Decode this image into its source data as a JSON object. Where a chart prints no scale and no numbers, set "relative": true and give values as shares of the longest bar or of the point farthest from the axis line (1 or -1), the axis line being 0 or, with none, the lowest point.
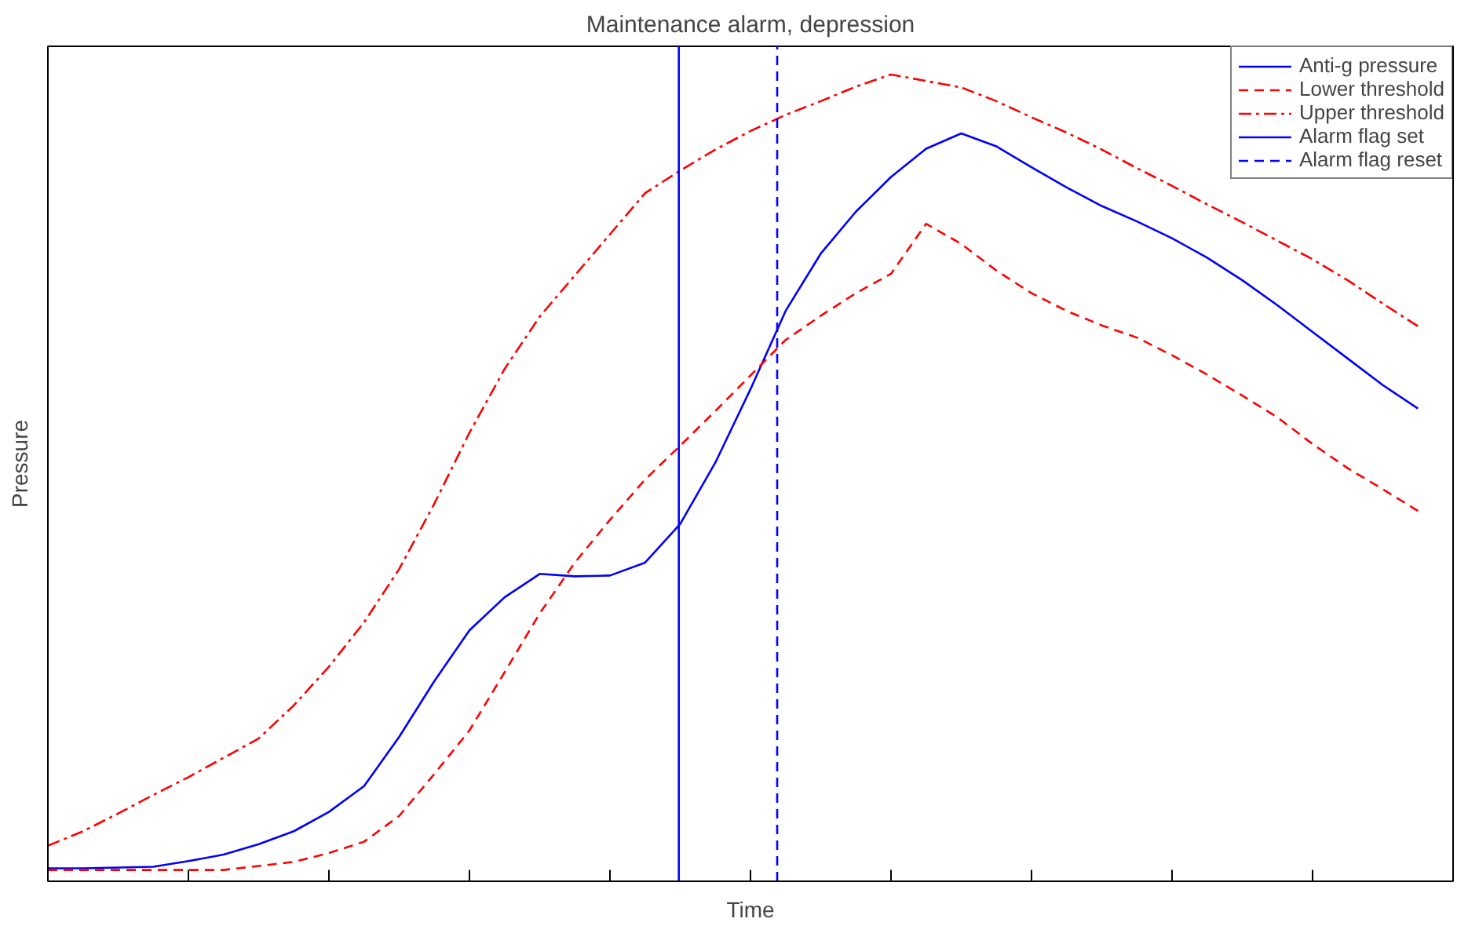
{
  "chart_data": {
    "type": "line",
    "title": "Maintenance alarm, depression",
    "xlabel": "Time",
    "ylabel": "Pressure",
    "relative": true,
    "categories": [
      null,
      null,
      null,
      null,
      null,
      null,
      null,
      null,
      null,
      null,
      null,
      null,
      null,
      null,
      null,
      null,
      null,
      null,
      null,
      null,
      null,
      null,
      null,
      null,
      null,
      null,
      null,
      null,
      null,
      null,
      null,
      null,
      null,
      null,
      null,
      null,
      null,
      null,
      null,
      null
    ],
    "legend": "top right",
    "series": [
      {
        "name": "Anti-g pressure",
        "color": "#0000ff",
        "line_style": "solid",
        "values": [
          0.016,
          0.016,
          0.017,
          0.018,
          0.025,
          0.033,
          0.046,
          0.062,
          0.086,
          0.118,
          0.179,
          0.248,
          0.311,
          0.352,
          0.381,
          0.378,
          0.379,
          0.395,
          0.443,
          0.519,
          0.61,
          0.707,
          0.778,
          0.83,
          0.873,
          0.908,
          0.927,
          0.911,
          0.885,
          0.86,
          0.837,
          0.818,
          0.797,
          0.773,
          0.745,
          0.714,
          0.681,
          0.648,
          0.615,
          0.586
        ]
      },
      {
        "name": "Lower threshold",
        "color": "#ff0000",
        "line_style": "dashed",
        "values": [
          0.014,
          0.014,
          0.014,
          0.014,
          0.014,
          0.014,
          0.019,
          0.024,
          0.035,
          0.049,
          0.081,
          0.133,
          0.187,
          0.259,
          0.332,
          0.395,
          0.448,
          0.498,
          0.54,
          0.583,
          0.627,
          0.671,
          0.701,
          0.729,
          0.753,
          0.815,
          0.79,
          0.757,
          0.729,
          0.707,
          0.689,
          0.674,
          0.652,
          0.628,
          0.602,
          0.575,
          0.542,
          0.512,
          0.486,
          0.459
        ]
      },
      {
        "name": "Upper threshold",
        "color": "#ff0000",
        "line_style": "dashdot",
        "values": [
          0.044,
          0.062,
          0.084,
          0.107,
          0.129,
          0.153,
          0.177,
          0.218,
          0.266,
          0.321,
          0.387,
          0.468,
          0.556,
          0.635,
          0.7,
          0.751,
          0.802,
          0.853,
          0.881,
          0.907,
          0.93,
          0.95,
          0.967,
          0.985,
          1.0,
          0.992,
          0.984,
          0.967,
          0.947,
          0.928,
          0.907,
          0.884,
          0.862,
          0.839,
          0.817,
          0.794,
          0.771,
          0.745,
          0.716,
          0.688
        ]
      }
    ],
    "ref_lines": [
      {
        "axis": "x",
        "label": "Alarm flag set",
        "color": "#0000ff",
        "line_style": "solid"
      },
      {
        "axis": "x",
        "label": "Alarm flag reset",
        "color": "#0000ff",
        "line_style": "dashed"
      }
    ]
  }
}
